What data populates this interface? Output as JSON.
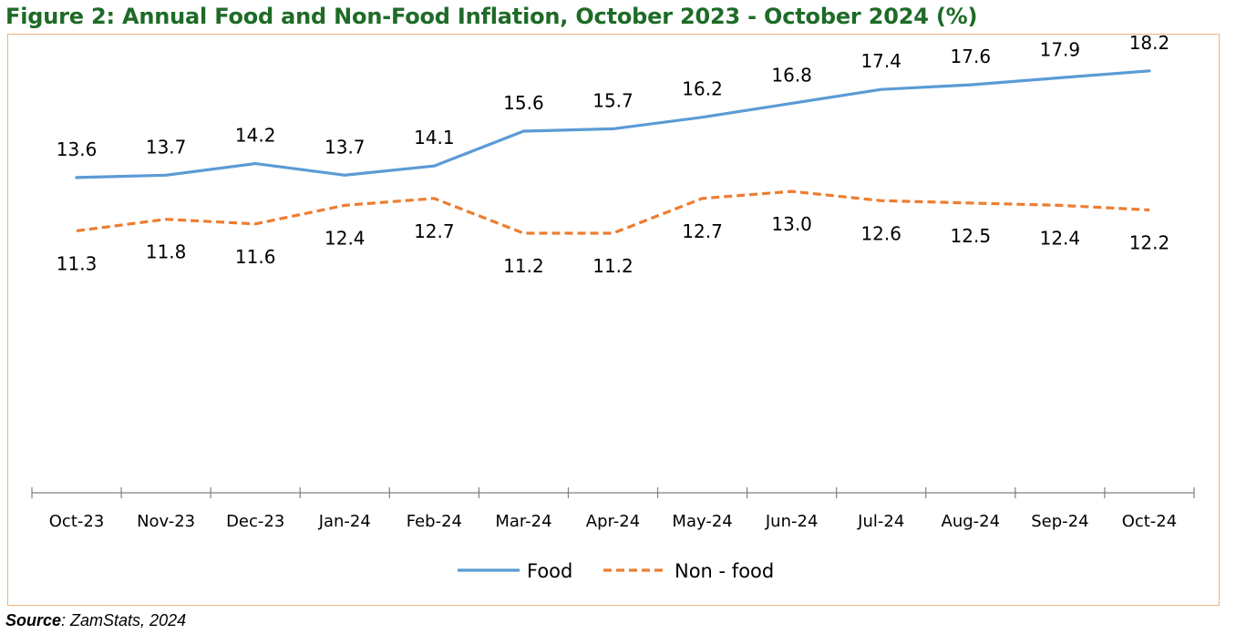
{
  "figure": {
    "title": "Figure 2: Annual Food and Non-Food Inflation, October 2023 - October 2024 (%)",
    "source_label": "Source",
    "source_text": ": ZamStats, 2024"
  },
  "chart_data": {
    "type": "line",
    "title": "Figure 2: Annual Food and Non-Food Inflation, October 2023 - October 2024 (%)",
    "xlabel": "",
    "ylabel": "",
    "categories": [
      "Oct-23",
      "Nov-23",
      "Dec-23",
      "Jan-24",
      "Feb-24",
      "Mar-24",
      "Apr-24",
      "May-24",
      "Jun-24",
      "Jul-24",
      "Aug-24",
      "Sep-24",
      "Oct-24"
    ],
    "series": [
      {
        "name": "Food",
        "values": [
          13.6,
          13.7,
          14.2,
          13.7,
          14.1,
          15.6,
          15.7,
          16.2,
          16.8,
          17.4,
          17.6,
          17.9,
          18.2
        ],
        "color": "#5b9bd5",
        "style": "solid"
      },
      {
        "name": "Non - food",
        "values": [
          11.3,
          11.8,
          11.6,
          12.4,
          12.7,
          11.2,
          11.2,
          12.7,
          13.0,
          12.6,
          12.5,
          12.4,
          12.2
        ],
        "color": "#ed7d31",
        "style": "dashed"
      }
    ],
    "data_labels": {
      "Food": [
        "13.6",
        "13.7",
        "14.2",
        "13.7",
        "14.1",
        "15.6",
        "15.7",
        "16.2",
        "16.8",
        "17.4",
        "17.6",
        "17.9",
        "18.2"
      ],
      "Non - food": [
        "11.3",
        "11.8",
        "11.6",
        "12.4",
        "12.7",
        "11.2",
        "11.2",
        "12.7",
        "13.0",
        "12.6",
        "12.5",
        "12.4",
        "12.2"
      ]
    },
    "ylim": [
      0,
      20
    ],
    "grid": false,
    "legend": "bottom",
    "colors": {
      "frame": "#f0b27a",
      "title": "#1e6b27",
      "axis": "#808080"
    }
  }
}
